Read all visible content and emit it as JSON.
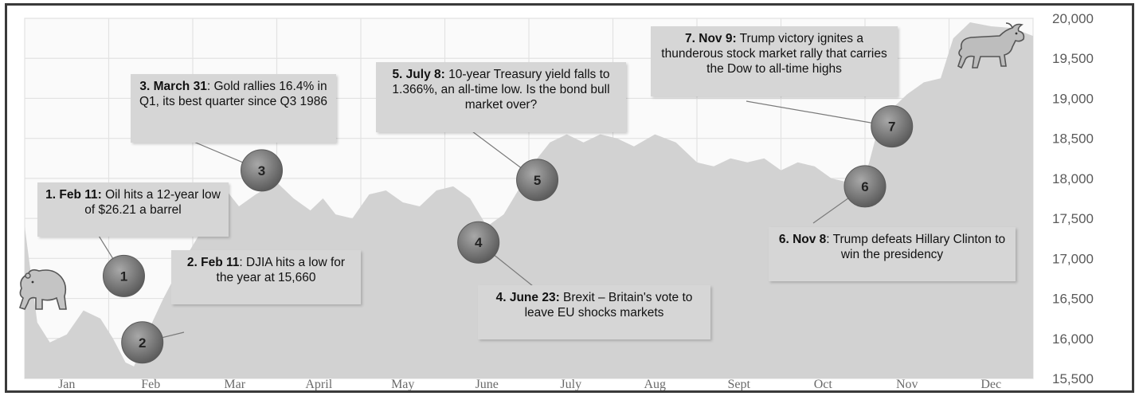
{
  "chart_data": {
    "type": "area",
    "title": "",
    "xlabel": "",
    "ylabel": "",
    "ylim": [
      15500,
      20000
    ],
    "x_range": [
      0,
      12
    ],
    "y_ticks": [
      15500,
      16000,
      16500,
      17000,
      17500,
      18000,
      18500,
      19000,
      19500,
      20000
    ],
    "y_tick_labels": [
      "15,500",
      "16,000",
      "16,500",
      "17,000",
      "17,500",
      "18,000",
      "18,500",
      "19,000",
      "19,500",
      "20,000"
    ],
    "months": [
      "Jan",
      "Feb",
      "Mar",
      "April",
      "May",
      "June",
      "July",
      "Aug",
      "Sept",
      "Oct",
      "Nov",
      "Dec"
    ],
    "grid": true,
    "series": [
      {
        "values": [
          [
            0.0,
            17400
          ],
          [
            0.15,
            16200
          ],
          [
            0.3,
            15950
          ],
          [
            0.5,
            16050
          ],
          [
            0.7,
            16350
          ],
          [
            0.9,
            16250
          ],
          [
            1.05,
            16000
          ],
          [
            1.2,
            15700
          ],
          [
            1.3,
            15650
          ],
          [
            1.45,
            16050
          ],
          [
            1.65,
            16500
          ],
          [
            1.85,
            16900
          ],
          [
            2.05,
            17250
          ],
          [
            2.25,
            17600
          ],
          [
            2.4,
            17850
          ],
          [
            2.55,
            17650
          ],
          [
            2.75,
            17800
          ],
          [
            3.0,
            17950
          ],
          [
            3.2,
            17750
          ],
          [
            3.4,
            17600
          ],
          [
            3.55,
            17750
          ],
          [
            3.7,
            17550
          ],
          [
            3.9,
            17500
          ],
          [
            4.1,
            17800
          ],
          [
            4.3,
            17850
          ],
          [
            4.5,
            17700
          ],
          [
            4.7,
            17650
          ],
          [
            4.9,
            17850
          ],
          [
            5.1,
            17900
          ],
          [
            5.3,
            17750
          ],
          [
            5.5,
            17400
          ],
          [
            5.7,
            17550
          ],
          [
            5.9,
            17900
          ],
          [
            6.1,
            18250
          ],
          [
            6.25,
            18450
          ],
          [
            6.45,
            18550
          ],
          [
            6.65,
            18450
          ],
          [
            6.85,
            18550
          ],
          [
            7.05,
            18500
          ],
          [
            7.25,
            18400
          ],
          [
            7.5,
            18550
          ],
          [
            7.75,
            18450
          ],
          [
            8.0,
            18200
          ],
          [
            8.2,
            18150
          ],
          [
            8.4,
            18250
          ],
          [
            8.6,
            18200
          ],
          [
            8.8,
            18250
          ],
          [
            9.0,
            18100
          ],
          [
            9.2,
            18200
          ],
          [
            9.4,
            18150
          ],
          [
            9.6,
            18000
          ],
          [
            9.8,
            17950
          ],
          [
            9.95,
            17880
          ],
          [
            10.05,
            18200
          ],
          [
            10.15,
            18600
          ],
          [
            10.3,
            18850
          ],
          [
            10.5,
            19050
          ],
          [
            10.7,
            19200
          ],
          [
            10.9,
            19250
          ],
          [
            11.05,
            19750
          ],
          [
            11.25,
            19950
          ],
          [
            11.5,
            19900
          ],
          [
            11.75,
            19880
          ],
          [
            12.0,
            19780
          ]
        ]
      }
    ],
    "events": [
      {
        "num": "1",
        "x": 1.18,
        "y": 16780,
        "bold": "1. Feb 11:",
        "rest": " Oil hits a 12-year low of $26.21 a barrel"
      },
      {
        "num": "2",
        "x": 1.4,
        "y": 15950,
        "bold": "2. Feb 11",
        "rest": ": DJIA hits a low for the year at 15,660"
      },
      {
        "num": "3",
        "x": 2.82,
        "y": 18100,
        "bold": "3. March 31",
        "rest": ": Gold rallies 16.4% in Q1, its best quarter since Q3 1986"
      },
      {
        "num": "4",
        "x": 5.4,
        "y": 17200,
        "bold": "4. June 23:",
        "rest": " Brexit – Britain's vote to leave EU shocks markets"
      },
      {
        "num": "5",
        "x": 6.1,
        "y": 17980,
        "bold": "5. July 8:",
        "rest": " 10-year Treasury yield falls to 1.366%, an all-time low. Is the bond bull market over?"
      },
      {
        "num": "6",
        "x": 10.0,
        "y": 17900,
        "bold": "6. Nov 8",
        "rest": ": Trump defeats Hillary Clinton to win the presidency"
      },
      {
        "num": "7",
        "x": 10.32,
        "y": 18650,
        "bold": "7. Nov 9:",
        "rest": " Trump victory ignites a thunderous stock market rally that carries the Dow to all-time highs"
      }
    ],
    "colors": {
      "area": "#d2d2d2",
      "grid": "#e2e2e2",
      "marker": "#7a7a7a",
      "callout": "#d6d6d6"
    },
    "icons": [
      "bull-icon",
      "bear-icon"
    ]
  }
}
